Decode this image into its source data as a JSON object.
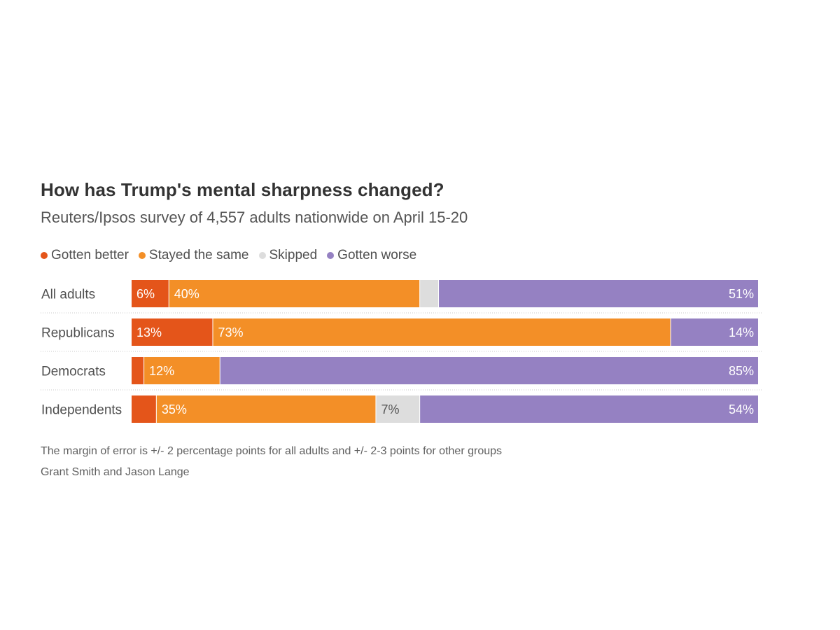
{
  "header": {
    "title": "How has Trump's mental sharpness changed?",
    "subtitle": "Reuters/Ipsos survey of 4,557 adults nationwide on April 15-20"
  },
  "legend": {
    "items": [
      {
        "label": "Gotten better",
        "color": "#e4551a"
      },
      {
        "label": "Stayed the same",
        "color": "#f38f27"
      },
      {
        "label": "Skipped",
        "color": "#dddddd"
      },
      {
        "label": "Gotten worse",
        "color": "#9581c2"
      }
    ]
  },
  "chart_data": {
    "type": "bar",
    "stacked": true,
    "orientation": "horizontal",
    "title": "How has Trump's mental sharpness changed?",
    "subtitle": "Reuters/Ipsos survey of 4,557 adults nationwide on April 15-20",
    "categories": [
      "All adults",
      "Republicans",
      "Democrats",
      "Independents"
    ],
    "series": [
      {
        "name": "Gotten better",
        "color": "#e4551a",
        "values": [
          6,
          13,
          2,
          4
        ],
        "labels": [
          "6%",
          "13%",
          "",
          ""
        ],
        "label_color": "#ffffff"
      },
      {
        "name": "Stayed the same",
        "color": "#f38f27",
        "values": [
          40,
          73,
          12,
          35
        ],
        "labels": [
          "40%",
          "73%",
          "12%",
          "35%"
        ],
        "label_color": "#ffffff"
      },
      {
        "name": "Skipped",
        "color": "#dddddd",
        "values": [
          3,
          0,
          0,
          7
        ],
        "labels": [
          "",
          "",
          "",
          "7%"
        ],
        "label_color": "#555555"
      },
      {
        "name": "Gotten worse",
        "color": "#9581c2",
        "values": [
          51,
          14,
          85,
          54
        ],
        "labels": [
          "51%",
          "14%",
          "85%",
          "54%"
        ],
        "label_color": "#ffffff"
      }
    ],
    "xlim": [
      0,
      100
    ],
    "unit": "%",
    "legend_position": "top-left",
    "grid": false
  },
  "footer": {
    "note": "The margin of error is +/- 2 percentage points for all adults and +/- 2-3 points for other groups",
    "byline": "Grant Smith and Jason Lange"
  }
}
